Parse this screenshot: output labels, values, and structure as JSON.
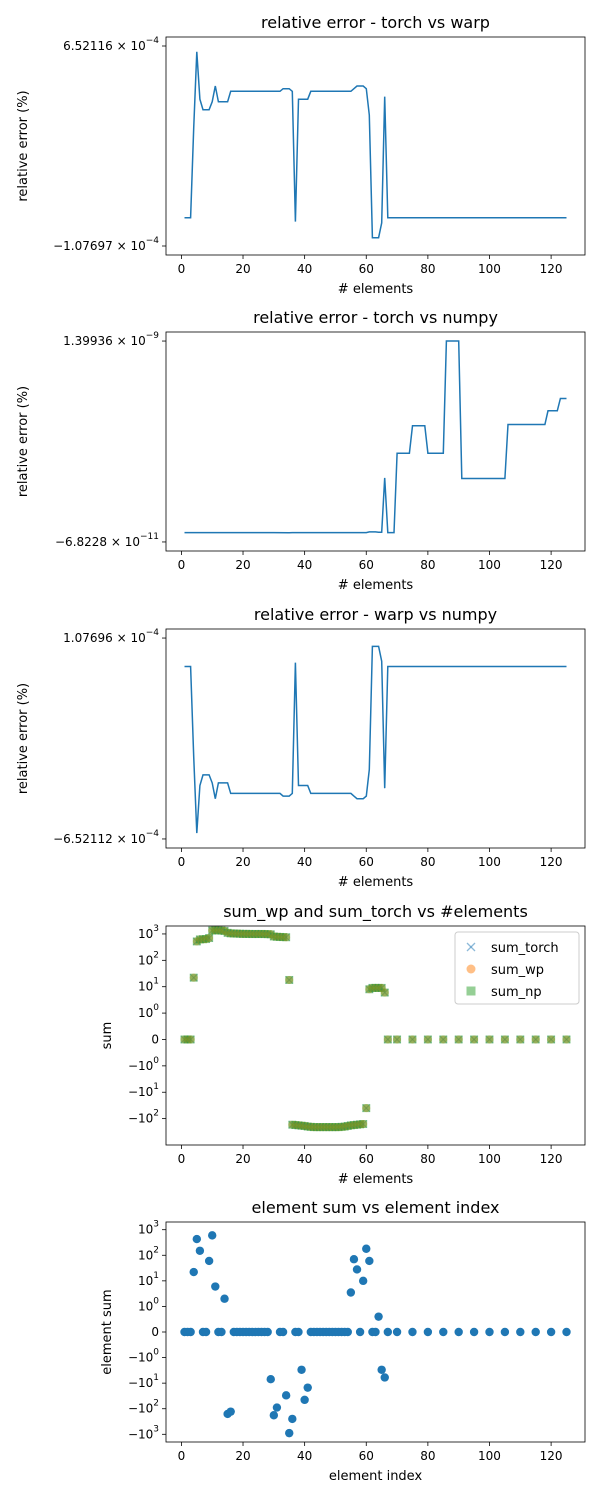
{
  "chart_data": [
    {
      "type": "line",
      "title": "relative error - torch vs warp",
      "xlabel": "# elements",
      "ylabel": "relative error (%)",
      "xlim": [
        -5,
        131
      ],
      "xticks": [
        0,
        20,
        40,
        60,
        80,
        100,
        120
      ],
      "ylim": [
        -0.000107697,
        0.000652116
      ],
      "ytick_labels": [
        {
          "value": 0.000652116,
          "base": "6.52116",
          "exp": "−4"
        },
        {
          "value": -0.000107697,
          "base": "−1.07697",
          "exp": "−4"
        }
      ],
      "color": "#1f77b4",
      "series": [
        {
          "x": [
            1,
            3,
            4,
            5,
            6,
            7,
            8,
            9,
            10,
            11,
            12,
            13,
            14,
            15,
            16,
            17,
            18,
            19,
            20,
            21,
            22,
            23,
            24,
            25,
            26,
            27,
            28,
            29,
            30,
            31,
            32,
            33,
            34,
            35,
            36,
            37,
            38,
            39,
            40,
            41,
            42,
            43,
            44,
            45,
            46,
            47,
            48,
            49,
            50,
            51,
            52,
            53,
            54,
            55,
            56,
            57,
            58,
            59,
            60,
            61,
            62,
            63,
            64,
            65,
            66,
            67,
            70,
            80,
            90,
            100,
            110,
            120,
            125
          ],
          "y": [
            0.0,
            0.0,
            0.00034,
            0.00063,
            0.00045,
            0.00041,
            0.00041,
            0.00041,
            0.00044,
            0.0005,
            0.00044,
            0.00044,
            0.00044,
            0.00044,
            0.00048,
            0.00048,
            0.00048,
            0.00048,
            0.00048,
            0.00048,
            0.00048,
            0.00048,
            0.00048,
            0.00048,
            0.00048,
            0.00048,
            0.00048,
            0.00048,
            0.00048,
            0.00048,
            0.00048,
            0.00049,
            0.00049,
            0.00049,
            0.00048,
            -1.5e-05,
            0.00045,
            0.00045,
            0.00045,
            0.00045,
            0.00048,
            0.00048,
            0.00048,
            0.00048,
            0.00048,
            0.00048,
            0.00048,
            0.00048,
            0.00048,
            0.00048,
            0.00048,
            0.00048,
            0.00048,
            0.00048,
            0.00049,
            0.0005,
            0.0005,
            0.0005,
            0.00049,
            0.00039,
            -7.6e-05,
            -7.6e-05,
            -7.6e-05,
            -2e-05,
            0.00046,
            0.0,
            0.0,
            0.0,
            0.0,
            0.0,
            0.0,
            0.0,
            0.0
          ]
        }
      ]
    },
    {
      "type": "line",
      "title": "relative error - torch vs numpy",
      "xlabel": "# elements",
      "ylabel": "relative error (%)",
      "xlim": [
        -5,
        131
      ],
      "xticks": [
        0,
        20,
        40,
        60,
        80,
        100,
        120
      ],
      "ylim": [
        -6.8228e-11,
        1.39936e-09
      ],
      "ytick_labels": [
        {
          "value": 1.39936e-09,
          "base": "1.39936",
          "exp": "−9"
        },
        {
          "value": -6.8228e-11,
          "base": "−6.8228",
          "exp": "−11"
        }
      ],
      "color": "#1f77b4",
      "series": [
        {
          "x": [
            1,
            10,
            20,
            30,
            35,
            36,
            40,
            50,
            60,
            61,
            62,
            63,
            64,
            65,
            66,
            67,
            68,
            69,
            70,
            71,
            72,
            73,
            74,
            75,
            76,
            77,
            78,
            79,
            80,
            81,
            82,
            83,
            84,
            85,
            86,
            87,
            88,
            89,
            90,
            91,
            92,
            100,
            105,
            106,
            107,
            110,
            115,
            118,
            119,
            121,
            122,
            123,
            124,
            125
          ],
          "y": [
            0,
            0,
            0,
            0,
            -3e-13,
            0,
            0,
            0,
            0,
            5e-12,
            5e-12,
            5e-12,
            3e-12,
            3e-12,
            4e-10,
            0,
            0,
            0,
            5.8e-10,
            5.8e-10,
            5.8e-10,
            5.8e-10,
            5.8e-10,
            7.8e-10,
            7.8e-10,
            7.8e-10,
            7.8e-10,
            7.8e-10,
            5.8e-10,
            5.8e-10,
            5.8e-10,
            5.8e-10,
            5.8e-10,
            5.8e-10,
            1.4e-09,
            1.4e-09,
            1.4e-09,
            1.4e-09,
            1.4e-09,
            3.95e-10,
            3.95e-10,
            3.95e-10,
            3.95e-10,
            7.9e-10,
            7.9e-10,
            7.9e-10,
            7.9e-10,
            7.9e-10,
            8.9e-10,
            8.9e-10,
            8.9e-10,
            9.8e-10,
            9.8e-10,
            9.8e-10
          ]
        }
      ]
    },
    {
      "type": "line",
      "title": "relative error - warp vs numpy",
      "xlabel": "# elements",
      "ylabel": "relative error (%)",
      "xlim": [
        -5,
        131
      ],
      "xticks": [
        0,
        20,
        40,
        60,
        80,
        100,
        120
      ],
      "ylim": [
        -0.000652112,
        0.000107696
      ],
      "ytick_labels": [
        {
          "value": 0.000107696,
          "base": "1.07696",
          "exp": "−4"
        },
        {
          "value": -0.000652112,
          "base": "−6.52112",
          "exp": "−4"
        }
      ],
      "color": "#1f77b4",
      "series": [
        {
          "x": [
            1,
            3,
            4,
            5,
            6,
            7,
            8,
            9,
            10,
            11,
            12,
            13,
            14,
            15,
            16,
            17,
            18,
            19,
            20,
            21,
            22,
            23,
            24,
            25,
            26,
            27,
            28,
            29,
            30,
            31,
            32,
            33,
            34,
            35,
            36,
            37,
            38,
            39,
            40,
            41,
            42,
            43,
            44,
            45,
            46,
            47,
            48,
            49,
            50,
            51,
            52,
            53,
            54,
            55,
            56,
            57,
            58,
            59,
            60,
            61,
            62,
            63,
            64,
            65,
            66,
            67,
            70,
            80,
            90,
            100,
            110,
            120,
            125
          ],
          "y": [
            0.0,
            0.0,
            -0.00034,
            -0.00063,
            -0.00045,
            -0.00041,
            -0.00041,
            -0.00041,
            -0.00044,
            -0.0005,
            -0.00044,
            -0.00044,
            -0.00044,
            -0.00044,
            -0.00048,
            -0.00048,
            -0.00048,
            -0.00048,
            -0.00048,
            -0.00048,
            -0.00048,
            -0.00048,
            -0.00048,
            -0.00048,
            -0.00048,
            -0.00048,
            -0.00048,
            -0.00048,
            -0.00048,
            -0.00048,
            -0.00048,
            -0.00049,
            -0.00049,
            -0.00049,
            -0.00048,
            1.5e-05,
            -0.00045,
            -0.00045,
            -0.00045,
            -0.00045,
            -0.00048,
            -0.00048,
            -0.00048,
            -0.00048,
            -0.00048,
            -0.00048,
            -0.00048,
            -0.00048,
            -0.00048,
            -0.00048,
            -0.00048,
            -0.00048,
            -0.00048,
            -0.00048,
            -0.00049,
            -0.0005,
            -0.0005,
            -0.0005,
            -0.00049,
            -0.00039,
            7.6e-05,
            7.6e-05,
            7.6e-05,
            2e-05,
            -0.00046,
            0.0,
            0.0,
            0.0,
            0.0,
            0.0,
            0.0,
            0.0,
            0.0
          ]
        }
      ]
    },
    {
      "type": "scatter",
      "title": "sum_wp and sum_torch vs #elements",
      "xlabel": "# elements",
      "ylabel": "sum",
      "xlim": [
        -5,
        131
      ],
      "xticks": [
        0,
        20,
        40,
        60,
        80,
        100,
        120
      ],
      "yscale": "symlog",
      "ylim": [
        -1000,
        2000
      ],
      "yticks": [
        {
          "value": 1000,
          "base": "10",
          "exp": "3"
        },
        {
          "value": 100,
          "base": "10",
          "exp": "2"
        },
        {
          "value": 10,
          "base": "10",
          "exp": "1"
        },
        {
          "value": 1,
          "base": "10",
          "exp": "0"
        },
        {
          "value": 0,
          "base": "0",
          "exp": ""
        },
        {
          "value": -1,
          "base": "−10",
          "exp": "0"
        },
        {
          "value": -10,
          "base": "−10",
          "exp": "1"
        },
        {
          "value": -100,
          "base": "−10",
          "exp": "2"
        }
      ],
      "legend": "top-right",
      "series": [
        {
          "name": "sum_torch",
          "marker": "x",
          "color": "#1f77b4"
        },
        {
          "name": "sum_wp",
          "marker": "o",
          "color": "#ff7f0e"
        },
        {
          "name": "sum_np",
          "marker": "s",
          "color": "#2ca02c"
        }
      ],
      "x": [
        1,
        2,
        3,
        4,
        5,
        6,
        7,
        8,
        9,
        10,
        11,
        12,
        13,
        14,
        15,
        16,
        17,
        18,
        19,
        20,
        21,
        22,
        23,
        24,
        25,
        26,
        27,
        28,
        29,
        30,
        31,
        32,
        33,
        34,
        35,
        36,
        37,
        38,
        39,
        40,
        41,
        42,
        43,
        44,
        45,
        46,
        47,
        48,
        49,
        50,
        51,
        52,
        53,
        54,
        55,
        56,
        57,
        58,
        59,
        60,
        61,
        62,
        63,
        64,
        65,
        66,
        67,
        70,
        75,
        80,
        85,
        90,
        95,
        100,
        105,
        110,
        115,
        120,
        125
      ],
      "values": [
        0,
        0,
        0,
        22,
        520,
        620,
        630,
        640,
        700,
        1350,
        1380,
        1360,
        1340,
        1300,
        1100,
        1050,
        1040,
        1030,
        1020,
        1000,
        1010,
        1000,
        990,
        1000,
        990,
        1000,
        990,
        980,
        970,
        800,
        780,
        770,
        760,
        750,
        18,
        -170,
        -175,
        -180,
        -185,
        -190,
        -200,
        -205,
        -210,
        -210,
        -210,
        -210,
        -210,
        -210,
        -210,
        -210,
        -210,
        -205,
        -200,
        -190,
        -180,
        -175,
        -170,
        -165,
        -160,
        -40,
        8,
        9,
        9,
        9,
        9,
        6,
        0,
        0,
        0,
        0,
        0,
        0,
        0,
        0,
        0,
        0,
        0,
        0,
        0
      ]
    },
    {
      "type": "scatter",
      "title": "element sum vs element index",
      "xlabel": "element index",
      "ylabel": "element sum",
      "xlim": [
        -5,
        131
      ],
      "xticks": [
        0,
        20,
        40,
        60,
        80,
        100,
        120
      ],
      "yscale": "symlog",
      "ylim": [
        -2000,
        2000
      ],
      "yticks": [
        {
          "value": 1000,
          "base": "10",
          "exp": "3"
        },
        {
          "value": 100,
          "base": "10",
          "exp": "2"
        },
        {
          "value": 10,
          "base": "10",
          "exp": "1"
        },
        {
          "value": 1,
          "base": "10",
          "exp": "0"
        },
        {
          "value": 0,
          "base": "0",
          "exp": ""
        },
        {
          "value": -1,
          "base": "−10",
          "exp": "0"
        },
        {
          "value": -10,
          "base": "−10",
          "exp": "1"
        },
        {
          "value": -100,
          "base": "−10",
          "exp": "2"
        },
        {
          "value": -1000,
          "base": "−10",
          "exp": "3"
        }
      ],
      "color": "#1f77b4",
      "x": [
        1,
        2,
        3,
        4,
        5,
        6,
        7,
        8,
        9,
        10,
        11,
        12,
        13,
        14,
        15,
        16,
        17,
        18,
        19,
        20,
        21,
        22,
        23,
        24,
        25,
        26,
        27,
        28,
        29,
        30,
        31,
        32,
        33,
        34,
        35,
        36,
        37,
        38,
        39,
        40,
        41,
        42,
        43,
        44,
        45,
        46,
        47,
        48,
        49,
        50,
        51,
        52,
        53,
        54,
        55,
        56,
        57,
        58,
        59,
        60,
        61,
        62,
        63,
        64,
        65,
        66,
        67,
        70,
        75,
        80,
        85,
        90,
        95,
        100,
        105,
        110,
        115,
        120,
        125
      ],
      "values": [
        0,
        0,
        0,
        22,
        430,
        150,
        0,
        0,
        60,
        600,
        6,
        0,
        0,
        2,
        -160,
        -130,
        0,
        0,
        0,
        0,
        0,
        0,
        0,
        0,
        0,
        0,
        0,
        0,
        -7,
        -180,
        -90,
        0,
        0,
        -30,
        -900,
        -250,
        0,
        0,
        -3,
        -45,
        -15,
        0,
        0,
        0,
        0,
        0,
        0,
        0,
        0,
        0,
        0,
        0,
        0,
        0,
        3.5,
        70,
        28,
        0,
        10,
        180,
        60,
        0,
        0,
        0.6,
        -3,
        -6,
        0,
        0,
        0,
        0,
        0,
        0,
        0,
        0,
        0,
        0,
        0,
        0,
        0
      ]
    }
  ]
}
